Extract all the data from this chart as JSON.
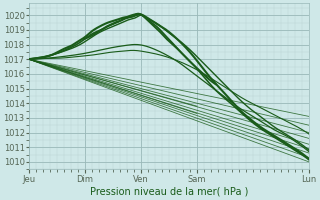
{
  "bg_color": "#cfe8e8",
  "grid_color_major": "#99b8b8",
  "grid_color_minor": "#b8d4d4",
  "line_color": "#1a5c1a",
  "ylim": [
    1009.5,
    1020.8
  ],
  "yticks": [
    1010,
    1011,
    1012,
    1013,
    1014,
    1015,
    1016,
    1017,
    1018,
    1019,
    1020
  ],
  "xlabel": "Pression niveau de la mer( hPa )",
  "day_labels": [
    "Jeu",
    "Dim",
    "Ven",
    "Sam",
    "Lun"
  ],
  "day_positions": [
    0,
    24,
    48,
    72,
    120
  ],
  "total_hours": 120,
  "ensemble_lines": [
    {
      "x": [
        0,
        120
      ],
      "y": [
        1017,
        1010.2
      ],
      "lw": 0.7,
      "alpha": 0.85
    },
    {
      "x": [
        0,
        120
      ],
      "y": [
        1017,
        1010.5
      ],
      "lw": 0.7,
      "alpha": 0.85
    },
    {
      "x": [
        0,
        120
      ],
      "y": [
        1017,
        1010.8
      ],
      "lw": 0.7,
      "alpha": 0.85
    },
    {
      "x": [
        0,
        120
      ],
      "y": [
        1017,
        1011.2
      ],
      "lw": 0.7,
      "alpha": 0.85
    },
    {
      "x": [
        0,
        120
      ],
      "y": [
        1017,
        1011.5
      ],
      "lw": 0.7,
      "alpha": 0.85
    },
    {
      "x": [
        0,
        120
      ],
      "y": [
        1017,
        1012.0
      ],
      "lw": 0.7,
      "alpha": 0.85
    },
    {
      "x": [
        0,
        120
      ],
      "y": [
        1017,
        1012.5
      ],
      "lw": 0.7,
      "alpha": 0.85
    },
    {
      "x": [
        0,
        120
      ],
      "y": [
        1017,
        1013.0
      ],
      "lw": 0.7,
      "alpha": 0.85
    }
  ],
  "main_curve_pts": {
    "x": [
      0,
      5,
      10,
      15,
      18,
      21,
      24,
      27,
      30,
      34,
      38,
      41,
      44,
      46,
      48,
      50,
      52,
      55,
      58,
      62,
      66,
      70,
      74,
      78,
      82,
      86,
      90,
      95,
      100,
      105,
      110,
      115,
      120
    ],
    "y": [
      1017.0,
      1017.1,
      1017.3,
      1017.7,
      1017.9,
      1018.2,
      1018.5,
      1018.9,
      1019.2,
      1019.5,
      1019.7,
      1019.85,
      1019.9,
      1020.0,
      1020.05,
      1019.9,
      1019.7,
      1019.4,
      1019.1,
      1018.6,
      1018.0,
      1017.3,
      1016.5,
      1015.7,
      1015.0,
      1014.3,
      1013.6,
      1012.9,
      1012.3,
      1011.8,
      1011.3,
      1010.8,
      1010.2
    ]
  },
  "upper_curve_pts": {
    "x": [
      0,
      8,
      16,
      22,
      26,
      30,
      34,
      37,
      40,
      43,
      46,
      48,
      50,
      53,
      56,
      60,
      65,
      70,
      75,
      80,
      85,
      90,
      95,
      100,
      105,
      110,
      115,
      120
    ],
    "y": [
      1017.0,
      1017.2,
      1017.6,
      1018.0,
      1018.4,
      1018.8,
      1019.1,
      1019.3,
      1019.5,
      1019.7,
      1019.85,
      1020.0,
      1019.85,
      1019.6,
      1019.3,
      1018.8,
      1018.2,
      1017.5,
      1016.7,
      1015.9,
      1015.1,
      1014.3,
      1013.6,
      1013.0,
      1012.4,
      1011.9,
      1011.4,
      1010.8
    ]
  },
  "wiggly_curve_pts": {
    "x": [
      0,
      6,
      12,
      18,
      22,
      25,
      28,
      31,
      34,
      37,
      39,
      41,
      43,
      45,
      47,
      49,
      51,
      53,
      55,
      58,
      61,
      65,
      70,
      75,
      80,
      85,
      90,
      95,
      100,
      105,
      110,
      115,
      120
    ],
    "y": [
      1017.0,
      1017.15,
      1017.4,
      1017.8,
      1018.15,
      1018.5,
      1018.8,
      1019.0,
      1019.25,
      1019.45,
      1019.6,
      1019.8,
      1019.95,
      1020.05,
      1020.1,
      1019.95,
      1019.7,
      1019.45,
      1019.2,
      1018.7,
      1018.2,
      1017.5,
      1016.7,
      1015.8,
      1014.9,
      1014.2,
      1013.5,
      1012.8,
      1012.2,
      1011.7,
      1011.2,
      1010.7,
      1010.15
    ]
  },
  "lower_curve_pts": {
    "x": [
      0,
      10,
      18,
      24,
      30,
      36,
      42,
      46,
      50,
      55,
      60,
      65,
      70,
      75,
      80,
      85,
      90,
      95,
      100,
      105,
      110,
      115,
      120
    ],
    "y": [
      1017.0,
      1017.1,
      1017.25,
      1017.4,
      1017.6,
      1017.8,
      1017.95,
      1018.0,
      1017.9,
      1017.6,
      1017.2,
      1016.7,
      1016.1,
      1015.5,
      1014.9,
      1014.3,
      1013.7,
      1013.2,
      1012.7,
      1012.2,
      1011.8,
      1011.3,
      1010.7
    ]
  },
  "extra_curve1": {
    "x": [
      0,
      8,
      16,
      22,
      28,
      34,
      40,
      45,
      50,
      56,
      62,
      68,
      74,
      80,
      86,
      92,
      98,
      104,
      110,
      116,
      120
    ],
    "y": [
      1017.0,
      1017.05,
      1017.1,
      1017.2,
      1017.3,
      1017.45,
      1017.55,
      1017.6,
      1017.5,
      1017.3,
      1017.0,
      1016.6,
      1016.1,
      1015.5,
      1014.9,
      1014.3,
      1013.8,
      1013.3,
      1012.8,
      1012.3,
      1011.9
    ]
  }
}
